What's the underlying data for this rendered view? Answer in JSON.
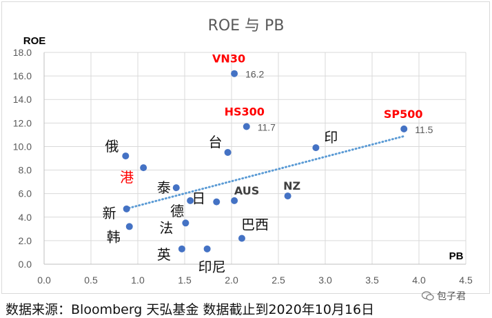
{
  "chart_data": {
    "type": "scatter",
    "title": "ROE 与 PB",
    "xlabel": "PB",
    "ylabel": "ROE",
    "xlim": [
      0,
      4.5
    ],
    "ylim": [
      0,
      18
    ],
    "xticks": [
      "0.0",
      "0.5",
      "1.0",
      "1.5",
      "2.0",
      "2.5",
      "3.0",
      "3.5",
      "4.0",
      "4.5"
    ],
    "yticks": [
      "0.0",
      "2.0",
      "4.0",
      "6.0",
      "8.0",
      "10.0",
      "12.0",
      "14.0",
      "16.0",
      "18.0"
    ],
    "grid": true,
    "marker_color": "#4472c4",
    "highlight_color": "#ff0000",
    "trendline": {
      "style": "dotted",
      "color": "#5b9bd5",
      "x": [
        0.87,
        3.85
      ],
      "y": [
        4.7,
        10.9
      ]
    },
    "points": [
      {
        "label": "VN30",
        "x": 2.03,
        "y": 16.2,
        "value_label": "16.2",
        "highlight": true
      },
      {
        "label": "HS300",
        "x": 2.16,
        "y": 11.7,
        "value_label": "11.7",
        "highlight": true
      },
      {
        "label": "SP500",
        "x": 3.84,
        "y": 11.5,
        "value_label": "11.5",
        "highlight": true
      },
      {
        "label": "印",
        "x": 2.9,
        "y": 9.9
      },
      {
        "label": "台",
        "x": 1.96,
        "y": 9.5
      },
      {
        "label": "俄",
        "x": 0.87,
        "y": 9.2
      },
      {
        "label": "港",
        "x": 1.06,
        "y": 8.2,
        "highlight": true
      },
      {
        "label": "泰",
        "x": 1.41,
        "y": 6.5
      },
      {
        "label": "日",
        "x": 1.84,
        "y": 5.3
      },
      {
        "label": "AUS",
        "x": 2.03,
        "y": 5.4
      },
      {
        "label": "NZ",
        "x": 2.6,
        "y": 5.8
      },
      {
        "label": "德",
        "x": 1.56,
        "y": 5.4
      },
      {
        "label": "新",
        "x": 0.88,
        "y": 4.7
      },
      {
        "label": "法",
        "x": 1.51,
        "y": 3.5
      },
      {
        "label": "韩",
        "x": 0.91,
        "y": 3.2
      },
      {
        "label": "巴西",
        "x": 2.11,
        "y": 2.2
      },
      {
        "label": "英",
        "x": 1.47,
        "y": 1.3
      },
      {
        "label": "印尼",
        "x": 1.74,
        "y": 1.3
      }
    ]
  },
  "footer": {
    "source": "数据来源：Bloomberg 天弘基金 数据截止到2020年10月16日"
  },
  "watermark": {
    "text": "包子君"
  }
}
